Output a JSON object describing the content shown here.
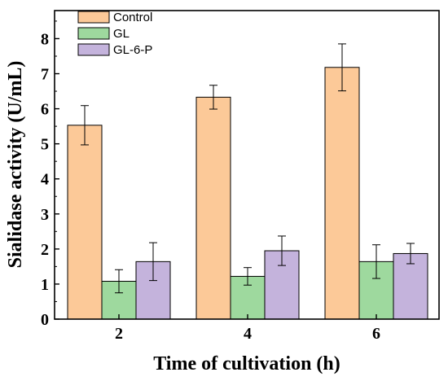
{
  "chart_data": {
    "type": "bar",
    "title": "",
    "xlabel": "Time of cultivation (h)",
    "ylabel": "Sialidase activity (U/mL)",
    "categories": [
      "2",
      "4",
      "6"
    ],
    "ylim": [
      0,
      8.8
    ],
    "yticks": [
      0,
      1,
      2,
      3,
      4,
      5,
      6,
      7,
      8
    ],
    "legend_position": "top-left",
    "grid": false,
    "series": [
      {
        "name": "Control",
        "color": "#FCC998",
        "values": [
          5.53,
          6.33,
          7.18
        ],
        "errors": [
          0.56,
          0.34,
          0.67
        ]
      },
      {
        "name": "GL",
        "color": "#9ED99E",
        "values": [
          1.08,
          1.22,
          1.64
        ],
        "errors": [
          0.33,
          0.25,
          0.48
        ]
      },
      {
        "name": "GL-6-P",
        "color": "#C4B3DC",
        "values": [
          1.64,
          1.95,
          1.87
        ],
        "errors": [
          0.54,
          0.42,
          0.29
        ]
      }
    ]
  }
}
